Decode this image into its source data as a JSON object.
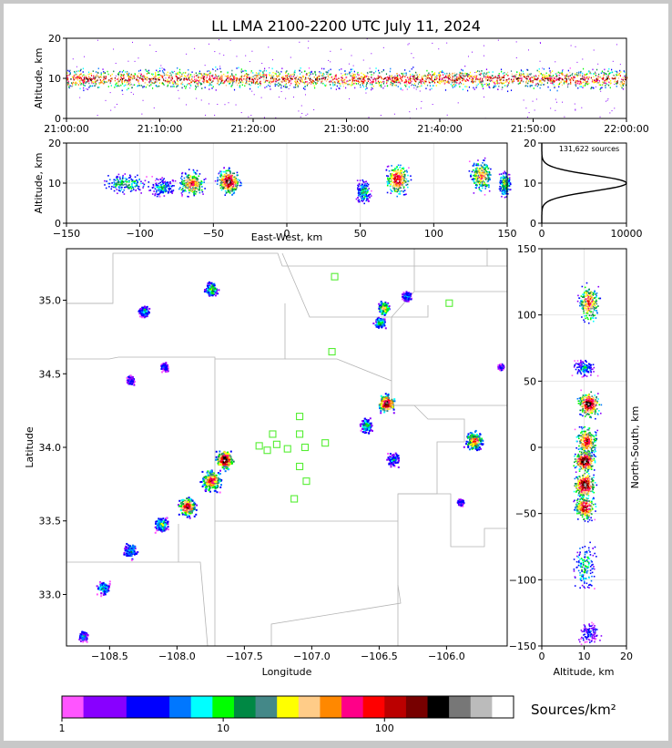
{
  "title": "LL LMA 2100-2200 UTC July 11, 2024",
  "chart_data": [
    {
      "id": "time-height",
      "type": "heatmap",
      "ylabel": "Altitude, km",
      "xlim_minutes": [
        0,
        60
      ],
      "ylim": [
        0,
        20
      ],
      "xticks": [
        "21:00:00",
        "21:10:00",
        "21:20:00",
        "21:30:00",
        "21:40:00",
        "21:50:00",
        "22:00:00"
      ],
      "yticks": [
        0,
        10,
        20
      ],
      "band_center_km": 10,
      "band_halfwidth_km": 3
    },
    {
      "id": "ew-altitude",
      "type": "heatmap",
      "xlabel": "East-West, km",
      "ylabel": "Altitude, km",
      "xlim": [
        -150,
        150
      ],
      "ylim": [
        0,
        20
      ],
      "xticks": [
        -150,
        -100,
        -50,
        0,
        50,
        100,
        150
      ],
      "yticks": [
        0,
        10,
        20
      ],
      "clusters": [
        {
          "x": -110,
          "alt": 10,
          "w": 20,
          "h": 3,
          "level": 0.45
        },
        {
          "x": -85,
          "alt": 9,
          "w": 10,
          "h": 3,
          "level": 0.4
        },
        {
          "x": -65,
          "alt": 10,
          "w": 12,
          "h": 4,
          "level": 0.75
        },
        {
          "x": -40,
          "alt": 10.5,
          "w": 10,
          "h": 4,
          "level": 0.95
        },
        {
          "x": 52,
          "alt": 8,
          "w": 6,
          "h": 4,
          "level": 0.45
        },
        {
          "x": 75,
          "alt": 11,
          "w": 10,
          "h": 5,
          "level": 0.85
        },
        {
          "x": 132,
          "alt": 12,
          "w": 10,
          "h": 5,
          "level": 0.7
        },
        {
          "x": 148,
          "alt": 10,
          "w": 5,
          "h": 4,
          "level": 0.55
        }
      ]
    },
    {
      "id": "altitude-histogram",
      "type": "line",
      "annotation": "131,622 sources",
      "xlim": [
        0,
        10000
      ],
      "ylim": [
        0,
        20
      ],
      "xticks": [
        0,
        10000
      ],
      "yticks": [
        0,
        10,
        20
      ],
      "peak_altitude_km": 10,
      "peak_count": 10000,
      "sigma_km": 2
    },
    {
      "id": "plan-view",
      "type": "heatmap",
      "xlabel": "Longitude",
      "ylabel": "Latitude",
      "xlim": [
        -108.82,
        -105.55
      ],
      "ylim": [
        32.65,
        35.35
      ],
      "xticks": [
        -108.5,
        -108.0,
        -107.5,
        -107.0,
        -106.5,
        -106.0
      ],
      "yticks": [
        33.0,
        33.5,
        34.0,
        34.5,
        35.0
      ],
      "stations": [
        {
          "lon": -106.83,
          "lat": 35.16
        },
        {
          "lon": -105.98,
          "lat": 34.98
        },
        {
          "lon": -106.85,
          "lat": 34.65
        },
        {
          "lon": -107.09,
          "lat": 34.21
        },
        {
          "lon": -107.29,
          "lat": 34.09
        },
        {
          "lon": -107.09,
          "lat": 34.09
        },
        {
          "lon": -107.39,
          "lat": 34.01
        },
        {
          "lon": -107.26,
          "lat": 34.02
        },
        {
          "lon": -107.33,
          "lat": 33.98
        },
        {
          "lon": -107.18,
          "lat": 33.99
        },
        {
          "lon": -107.05,
          "lat": 34.0
        },
        {
          "lon": -106.9,
          "lat": 34.03
        },
        {
          "lon": -107.09,
          "lat": 33.87
        },
        {
          "lon": -107.04,
          "lat": 33.77
        },
        {
          "lon": -107.13,
          "lat": 33.65
        }
      ],
      "clusters": [
        {
          "lon": -107.65,
          "lat": 33.92,
          "r": 0.08,
          "level": 1.0
        },
        {
          "lon": -107.75,
          "lat": 33.78,
          "r": 0.09,
          "level": 0.8
        },
        {
          "lon": -107.93,
          "lat": 33.6,
          "r": 0.08,
          "level": 0.85
        },
        {
          "lon": -108.12,
          "lat": 33.48,
          "r": 0.06,
          "level": 0.5
        },
        {
          "lon": -108.35,
          "lat": 33.3,
          "r": 0.07,
          "level": 0.35
        },
        {
          "lon": -108.55,
          "lat": 33.05,
          "r": 0.06,
          "level": 0.4
        },
        {
          "lon": -108.7,
          "lat": 32.72,
          "r": 0.05,
          "level": 0.3
        },
        {
          "lon": -106.45,
          "lat": 34.3,
          "r": 0.08,
          "level": 0.95
        },
        {
          "lon": -106.47,
          "lat": 34.95,
          "r": 0.05,
          "level": 0.7
        },
        {
          "lon": -106.5,
          "lat": 34.85,
          "r": 0.05,
          "level": 0.45
        },
        {
          "lon": -106.3,
          "lat": 35.03,
          "r": 0.04,
          "level": 0.35
        },
        {
          "lon": -105.8,
          "lat": 34.05,
          "r": 0.08,
          "level": 0.75
        },
        {
          "lon": -106.6,
          "lat": 34.15,
          "r": 0.06,
          "level": 0.45
        },
        {
          "lon": -106.4,
          "lat": 33.92,
          "r": 0.06,
          "level": 0.3
        },
        {
          "lon": -107.75,
          "lat": 35.08,
          "r": 0.06,
          "level": 0.5
        },
        {
          "lon": -108.25,
          "lat": 34.93,
          "r": 0.05,
          "level": 0.35
        },
        {
          "lon": -108.1,
          "lat": 34.55,
          "r": 0.04,
          "level": 0.25
        },
        {
          "lon": -108.35,
          "lat": 34.46,
          "r": 0.04,
          "level": 0.25
        },
        {
          "lon": -105.9,
          "lat": 33.63,
          "r": 0.03,
          "level": 0.25
        },
        {
          "lon": -105.6,
          "lat": 34.55,
          "r": 0.03,
          "level": 0.25
        }
      ]
    },
    {
      "id": "altitude-ns",
      "type": "heatmap",
      "xlabel": "Altitude, km",
      "ylabel": "North-South, km",
      "xlim": [
        0,
        20
      ],
      "ylim": [
        -150,
        150
      ],
      "xticks": [
        0,
        10,
        20
      ],
      "yticks": [
        -150,
        -100,
        -50,
        0,
        50,
        100,
        150
      ],
      "clusters": [
        {
          "ns": 110,
          "alt": 11,
          "h": 18,
          "level": 0.75
        },
        {
          "ns": 60,
          "alt": 10,
          "h": 8,
          "level": 0.35
        },
        {
          "ns": 33,
          "alt": 11,
          "h": 12,
          "level": 0.95
        },
        {
          "ns": 5,
          "alt": 10.5,
          "h": 15,
          "level": 0.8
        },
        {
          "ns": -10,
          "alt": 10,
          "h": 10,
          "level": 1.0
        },
        {
          "ns": -28,
          "alt": 10,
          "h": 12,
          "level": 1.0
        },
        {
          "ns": -45,
          "alt": 10,
          "h": 12,
          "level": 0.85
        },
        {
          "ns": -90,
          "alt": 10,
          "h": 25,
          "level": 0.4
        },
        {
          "ns": -140,
          "alt": 11,
          "h": 10,
          "level": 0.25
        }
      ]
    },
    {
      "id": "colorbar",
      "type": "colorbar",
      "label": "Sources/km²",
      "tick_labels": [
        "1",
        "10",
        "100"
      ],
      "tick_values": [
        1,
        10,
        100
      ],
      "range_log10": [
        0,
        2.8
      ],
      "colors": [
        "#ff55ff",
        "#8800ff",
        "#8800ff",
        "#0000ff",
        "#0000ff",
        "#0077ff",
        "#00ffff",
        "#00ff00",
        "#008844",
        "#448888",
        "#ffff00",
        "#ffcc88",
        "#ff8800",
        "#ff0088",
        "#ff0000",
        "#bb0000",
        "#770000",
        "#000000",
        "#777777",
        "#bbbbbb",
        "#ffffff"
      ]
    }
  ]
}
